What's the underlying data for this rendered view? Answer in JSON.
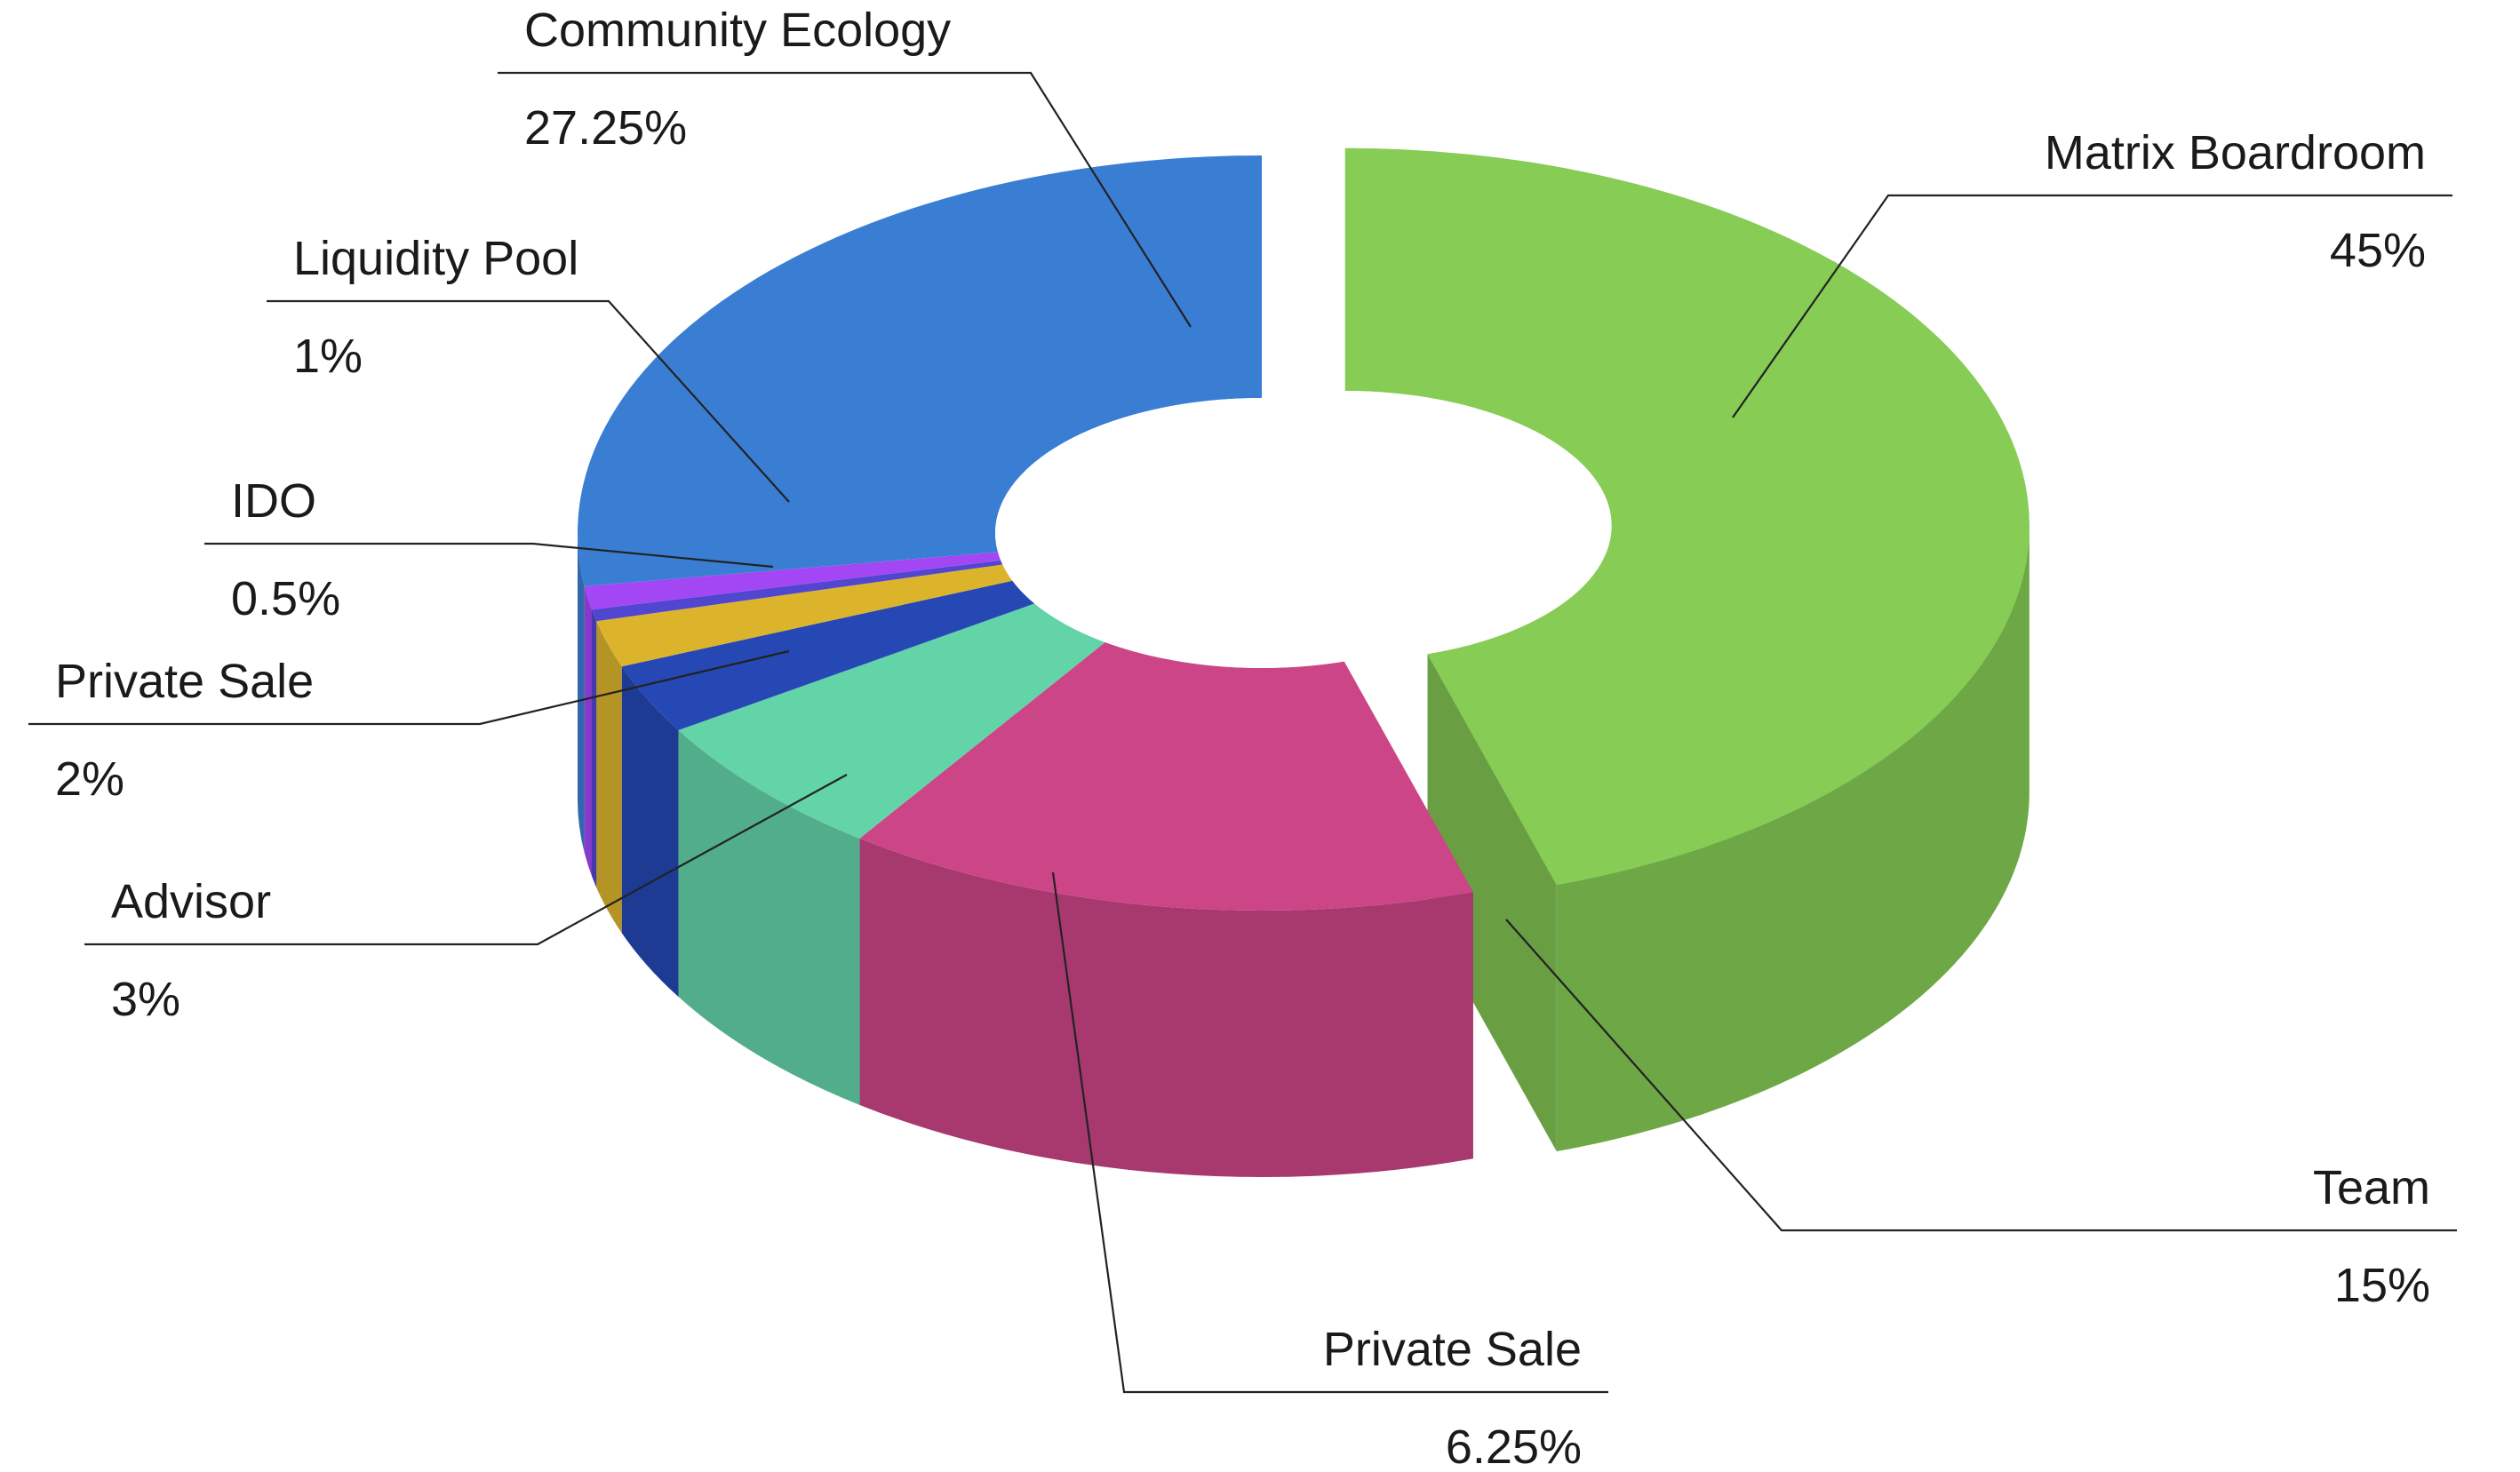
{
  "chart_data": {
    "type": "pie",
    "variant": "3d-donut",
    "title": "",
    "legend": "none",
    "exploded": [
      "Matrix Boardroom"
    ],
    "slices": [
      {
        "label": "Matrix Boardroom",
        "value_label": "45%",
        "value": 45,
        "color": "#86cc55"
      },
      {
        "label": "Team",
        "value_label": "15%",
        "value": 15,
        "color": "#cc4687"
      },
      {
        "label": "Private Sale",
        "value_label": "6.25%",
        "value": 6.25,
        "color": "#63d3a8"
      },
      {
        "label": "Advisor",
        "value_label": "3%",
        "value": 3,
        "color": "#2548b4"
      },
      {
        "label": "Private Sale",
        "value_label": "2%",
        "value": 2,
        "color": "#dcb42c"
      },
      {
        "label": "IDO",
        "value_label": "0.5%",
        "value": 0.5,
        "color": "#5146d0"
      },
      {
        "label": "Liquidity Pool",
        "value_label": "1%",
        "value": 1,
        "color": "#a347f5"
      },
      {
        "label": "Community Ecology",
        "value_label": "27.25%",
        "value": 27.25,
        "color": "#3a7ed3"
      }
    ]
  }
}
